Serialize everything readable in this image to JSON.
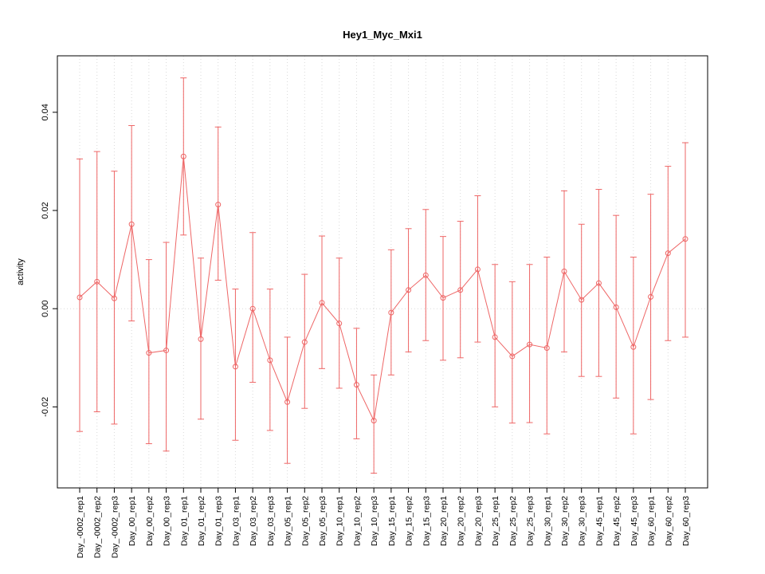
{
  "chart_data": {
    "type": "line",
    "title": "Hey1_Myc_Mxi1",
    "ylabel": "activity",
    "xlabel": "",
    "ylim": [
      -0.0365,
      0.0515
    ],
    "yticks": [
      -0.02,
      0.0,
      0.02,
      0.04
    ],
    "ytick_labels": [
      "-0.02",
      "0.00",
      "0.02",
      "0.04"
    ],
    "grid": true,
    "legend_position": "none",
    "marker": "open-circle",
    "error_bars": true,
    "colors": {
      "series": "#ee6666",
      "grid": "#d9d9d9",
      "axis": "#000000",
      "background": "#ffffff"
    },
    "categories": [
      "Day_-0002_rep1",
      "Day_-0002_rep2",
      "Day_-0002_rep3",
      "Day_00_rep1",
      "Day_00_rep2",
      "Day_00_rep3",
      "Day_01_rep1",
      "Day_01_rep2",
      "Day_01_rep3",
      "Day_03_rep1",
      "Day_03_rep2",
      "Day_03_rep3",
      "Day_05_rep1",
      "Day_05_rep2",
      "Day_05_rep3",
      "Day_10_rep1",
      "Day_10_rep2",
      "Day_10_rep3",
      "Day_15_rep1",
      "Day_15_rep2",
      "Day_15_rep3",
      "Day_20_rep1",
      "Day_20_rep2",
      "Day_20_rep3",
      "Day_25_rep1",
      "Day_25_rep2",
      "Day_25_rep3",
      "Day_30_rep1",
      "Day_30_rep2",
      "Day_30_rep3",
      "Day_45_rep1",
      "Day_45_rep2",
      "Day_45_rep3",
      "Day_60_rep1",
      "Day_60_rep2",
      "Day_60_rep3"
    ],
    "values": [
      0.0023,
      0.0055,
      0.0021,
      0.0172,
      -0.009,
      -0.0085,
      0.031,
      -0.0062,
      0.0212,
      -0.0118,
      0.0,
      -0.0105,
      -0.019,
      -0.0068,
      0.0012,
      -0.003,
      -0.0155,
      -0.0228,
      -0.0008,
      0.0038,
      0.0068,
      0.0022,
      0.0038,
      0.008,
      -0.0058,
      -0.0097,
      -0.0073,
      -0.008,
      0.0076,
      0.0018,
      0.0052,
      0.0003,
      -0.0078,
      0.0024,
      0.0113,
      0.0142
    ],
    "upper": [
      0.0305,
      0.032,
      0.028,
      0.0373,
      0.01,
      0.0135,
      0.047,
      0.0103,
      0.037,
      0.004,
      0.0155,
      0.004,
      -0.0058,
      0.007,
      0.0148,
      0.0103,
      -0.004,
      -0.0135,
      0.012,
      0.0163,
      0.0202,
      0.0147,
      0.0178,
      0.023,
      0.009,
      0.0055,
      0.009,
      0.0105,
      0.024,
      0.0172,
      0.0243,
      0.019,
      0.0105,
      0.0233,
      0.029,
      0.0338
    ],
    "lower": [
      -0.025,
      -0.021,
      -0.0235,
      -0.0025,
      -0.0275,
      -0.029,
      0.015,
      -0.0225,
      0.0058,
      -0.0268,
      -0.015,
      -0.0248,
      -0.0315,
      -0.0203,
      -0.0122,
      -0.0162,
      -0.0265,
      -0.0335,
      -0.0135,
      -0.0088,
      -0.0065,
      -0.0105,
      -0.01,
      -0.0068,
      -0.02,
      -0.0233,
      -0.0232,
      -0.0255,
      -0.0088,
      -0.0138,
      -0.0138,
      -0.0182,
      -0.0255,
      -0.0185,
      -0.0065,
      -0.0058
    ]
  }
}
